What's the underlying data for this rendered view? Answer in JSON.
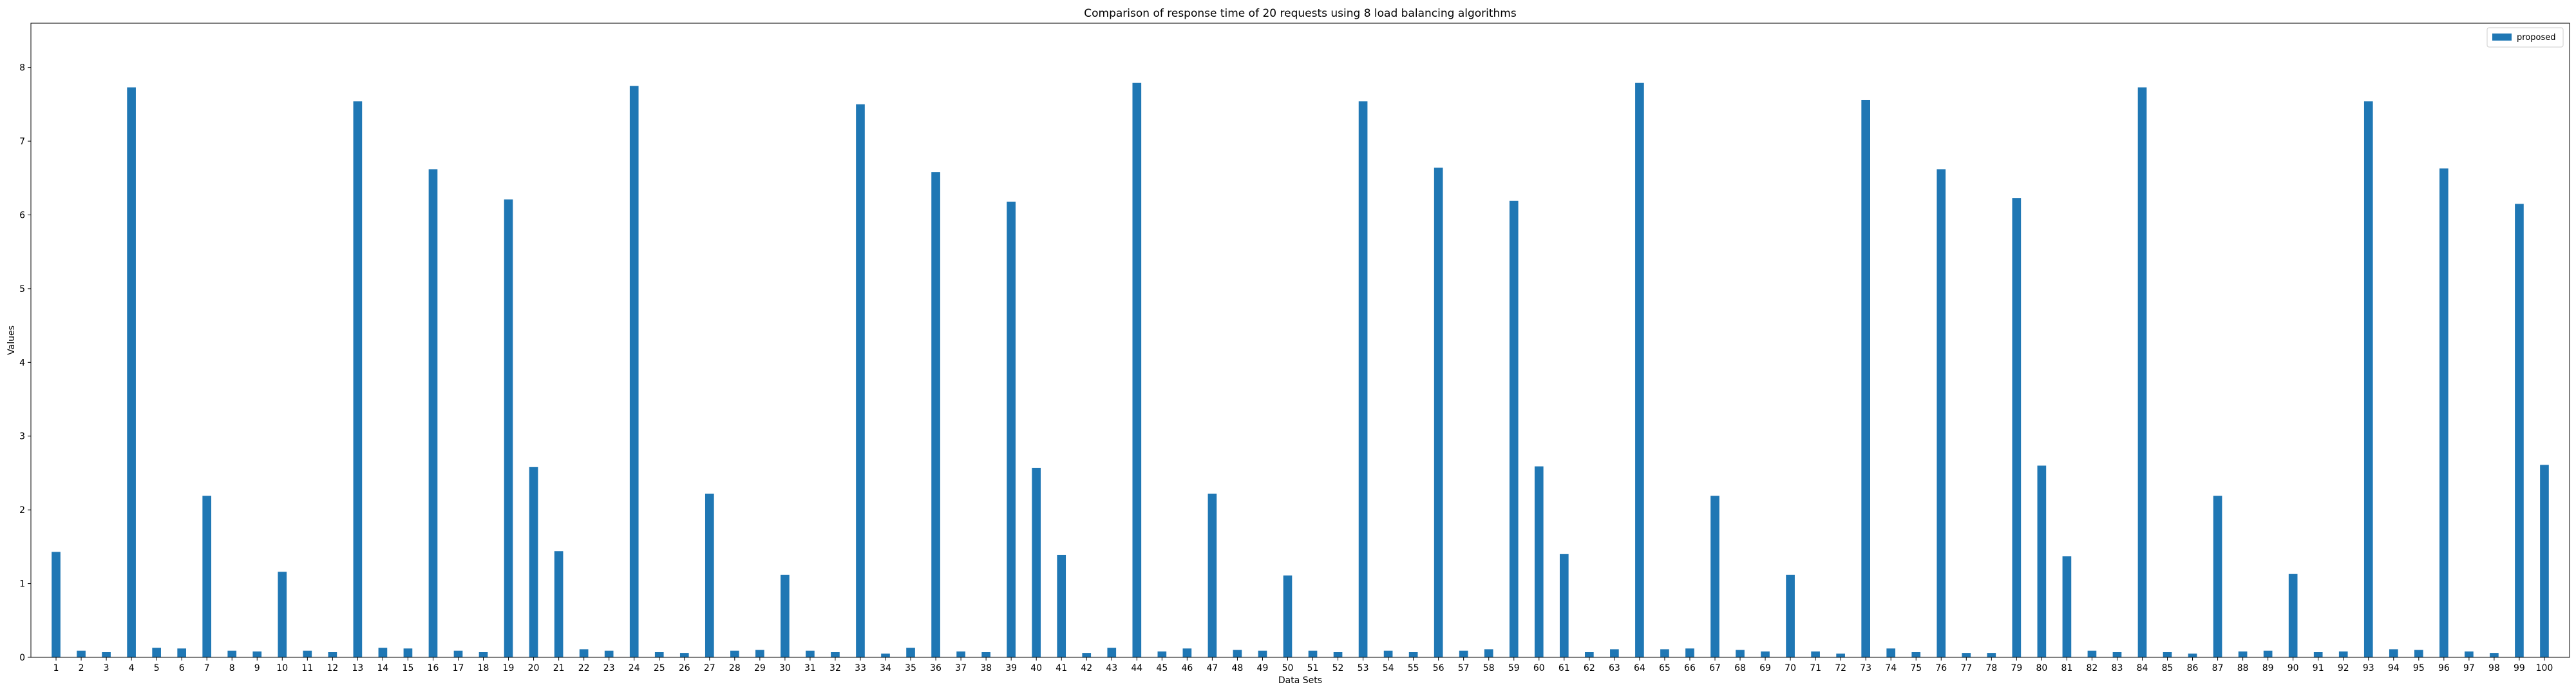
{
  "chart_data": {
    "type": "bar",
    "title": "Comparison of response time of 20 requests using 8 load balancing algorithms",
    "xlabel": "Data Sets",
    "ylabel": "Values",
    "ylim": [
      0,
      8.6
    ],
    "yticks": [
      0,
      1,
      2,
      3,
      4,
      5,
      6,
      7,
      8
    ],
    "grid": false,
    "legend_position": "top-right",
    "bar_color": "#1f77b4",
    "categories": [
      "1",
      "2",
      "3",
      "4",
      "5",
      "6",
      "7",
      "8",
      "9",
      "10",
      "11",
      "12",
      "13",
      "14",
      "15",
      "16",
      "17",
      "18",
      "19",
      "20",
      "21",
      "22",
      "23",
      "24",
      "25",
      "26",
      "27",
      "28",
      "29",
      "30",
      "31",
      "32",
      "33",
      "34",
      "35",
      "36",
      "37",
      "38",
      "39",
      "40",
      "41",
      "42",
      "43",
      "44",
      "45",
      "46",
      "47",
      "48",
      "49",
      "50",
      "51",
      "52",
      "53",
      "54",
      "55",
      "56",
      "57",
      "58",
      "59",
      "60",
      "61",
      "62",
      "63",
      "64",
      "65",
      "66",
      "67",
      "68",
      "69",
      "70",
      "71",
      "72",
      "73",
      "74",
      "75",
      "76",
      "77",
      "78",
      "79",
      "80",
      "81",
      "82",
      "83",
      "84",
      "85",
      "86",
      "87",
      "88",
      "89",
      "90",
      "91",
      "92",
      "93",
      "94",
      "95",
      "96",
      "97",
      "98",
      "99",
      "100"
    ],
    "series": [
      {
        "name": "proposed",
        "values": [
          1.43,
          0.09,
          0.07,
          7.73,
          0.13,
          0.12,
          2.19,
          0.09,
          0.08,
          1.16,
          0.09,
          0.07,
          7.54,
          0.13,
          0.12,
          6.62,
          0.09,
          0.07,
          6.21,
          2.58,
          1.44,
          0.11,
          0.09,
          7.75,
          0.07,
          0.06,
          2.22,
          0.09,
          0.1,
          1.12,
          0.09,
          0.07,
          7.5,
          0.05,
          0.13,
          6.58,
          0.08,
          0.07,
          6.18,
          2.57,
          1.39,
          0.06,
          0.13,
          7.79,
          0.08,
          0.12,
          2.22,
          0.1,
          0.09,
          1.11,
          0.09,
          0.07,
          7.54,
          0.09,
          0.07,
          6.64,
          0.09,
          0.11,
          6.19,
          2.59,
          1.4,
          0.07,
          0.11,
          7.79,
          0.11,
          0.12,
          2.19,
          0.1,
          0.08,
          1.12,
          0.08,
          0.05,
          7.56,
          0.12,
          0.07,
          6.62,
          0.06,
          0.06,
          6.23,
          2.6,
          1.37,
          0.09,
          0.07,
          7.73,
          0.07,
          0.05,
          2.19,
          0.08,
          0.09,
          1.13,
          0.07,
          0.08,
          7.54,
          0.11,
          0.1,
          6.63,
          0.08,
          0.06,
          6.15,
          2.61
        ]
      }
    ]
  }
}
